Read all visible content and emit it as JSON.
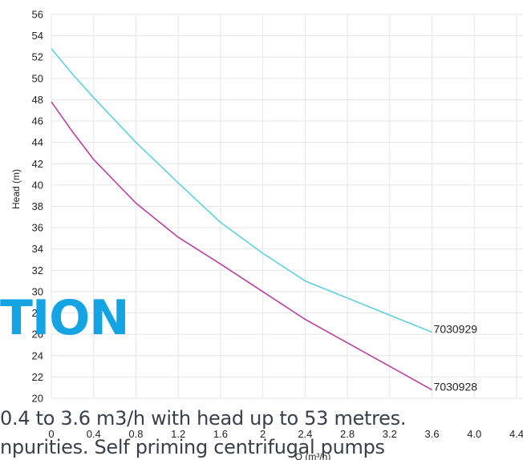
{
  "chart_data": {
    "type": "line",
    "xlabel": "Q (m³/h)",
    "ylabel": "Head (m)",
    "xlim": [
      0,
      4.4
    ],
    "ylim": [
      20,
      56
    ],
    "x_ticks": [
      "0",
      "0.4",
      "0.8",
      "1.2",
      "1.6",
      "2",
      "2.4",
      "2.8",
      "3.2",
      "3.6",
      "4.0",
      "4.4"
    ],
    "y_ticks": [
      20,
      22,
      24,
      26,
      28,
      30,
      32,
      34,
      36,
      38,
      40,
      42,
      44,
      46,
      48,
      50,
      52,
      54,
      56
    ],
    "grid": true,
    "series": [
      {
        "name": "7030929",
        "color": "#5fd0dc",
        "x": [
          0,
          0.2,
          0.4,
          0.8,
          1.2,
          1.6,
          2.0,
          2.4,
          2.8,
          3.2,
          3.6
        ],
        "y": [
          52.8,
          50.4,
          48.2,
          44.0,
          40.2,
          36.5,
          33.6,
          31.0,
          29.4,
          27.8,
          26.2
        ]
      },
      {
        "name": "7030928",
        "color": "#b8409e",
        "x": [
          0,
          0.2,
          0.4,
          0.8,
          1.2,
          1.6,
          2.0,
          2.4,
          2.8,
          3.2,
          3.6
        ],
        "y": [
          47.8,
          45.0,
          42.4,
          38.3,
          35.1,
          32.6,
          30.0,
          27.4,
          25.2,
          23.0,
          20.8
        ]
      }
    ]
  },
  "overlay": {
    "heading": "TION",
    "line1": "0.4 to 3.6 m3/h with head up to 53 metres.",
    "line2": "npurities. Self priming centrifugal pumps"
  }
}
